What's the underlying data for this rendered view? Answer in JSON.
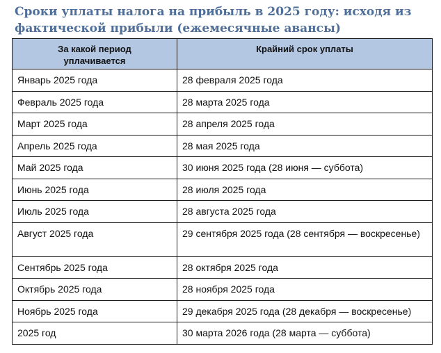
{
  "title": {
    "line1": "Сроки уплаты налога на прибыль в 2025 году: исходя из",
    "line2": "фактической прибыли (ежемесячные авансы)"
  },
  "table": {
    "headers": {
      "period_line1": "За какой период",
      "period_line2": "уплачивается",
      "deadline": "Крайний срок уплаты"
    },
    "rows": [
      {
        "period": "Январь 2025 года",
        "deadline": "28 февраля 2025 года"
      },
      {
        "period": "Февраль 2025 года",
        "deadline": "28 марта 2025 года"
      },
      {
        "period": "Март 2025 года",
        "deadline": "28 апреля 2025 года"
      },
      {
        "period": "Апрель 2025 года",
        "deadline": "28 мая 2025 года"
      },
      {
        "period": "Май 2025 года",
        "deadline": "30 июня 2025 года (28 июня — суббота)"
      },
      {
        "period": "Июнь 2025 года",
        "deadline": "28 июля 2025 года"
      },
      {
        "period": "Июль 2025 года",
        "deadline": "28 августа 2025 года"
      },
      {
        "period": "Август 2025 года",
        "deadline": "29 сентября 2025 года (28 сентября — воскресенье)"
      },
      {
        "period": "Сентябрь 2025 года",
        "deadline": "28 октября 2025 года"
      },
      {
        "period": "Октябрь 2025 года",
        "deadline": "28 ноября 2025 года"
      },
      {
        "period": "Ноябрь 2025 года",
        "deadline": "29 декабря 2025 года (28 декабря — воскресенье)"
      },
      {
        "period": "2025 год",
        "deadline": "30 марта 2026 года (28 марта — суббота)"
      }
    ]
  }
}
